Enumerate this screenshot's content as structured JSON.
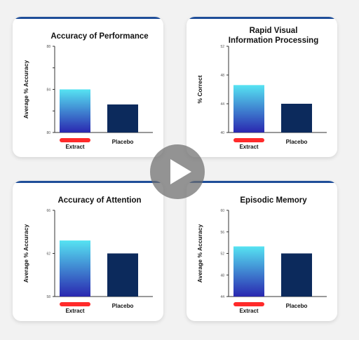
{
  "colors": {
    "accent": "#1f4e99",
    "bar_top": "#56e3f2",
    "bar_bottom": "#2a27b0",
    "placebo": "#0c2a5c",
    "redaction": "#ff2a2a"
  },
  "icons": {
    "play": "play-icon"
  },
  "chart_data": [
    {
      "type": "bar",
      "title": [
        "Accuracy of Performance"
      ],
      "ylabel": "Average % Accuracy",
      "ylim": [
        80,
        88
      ],
      "yticks": [
        "80",
        "",
        "84",
        "",
        "88"
      ],
      "categories": [
        "Extract",
        "Placebo"
      ],
      "values": [
        84.0,
        82.6
      ]
    },
    {
      "type": "bar",
      "title": [
        "Rapid Visual",
        "Information Processing"
      ],
      "ylabel": "% Correct",
      "ylim": [
        40,
        52
      ],
      "yticks": [
        "40",
        "44",
        "48",
        "52"
      ],
      "categories": [
        "Extract",
        "Placebo"
      ],
      "values": [
        46.6,
        44.0
      ]
    },
    {
      "type": "bar",
      "title": [
        "Accuracy of Attention"
      ],
      "ylabel": "Average % Accuracy",
      "ylim": [
        58,
        66
      ],
      "yticks": [
        "58",
        "62",
        "66"
      ],
      "categories": [
        "Extract",
        "Placebo"
      ],
      "values": [
        63.2,
        62.0
      ]
    },
    {
      "type": "bar",
      "title": [
        "Episodic Memory"
      ],
      "ylabel": "Average % Accuracy",
      "ylim": [
        44,
        60
      ],
      "yticks": [
        "44",
        "48",
        "52",
        "56",
        "60"
      ],
      "categories": [
        "Extract",
        "Placebo"
      ],
      "values": [
        53.3,
        52.0
      ]
    }
  ]
}
